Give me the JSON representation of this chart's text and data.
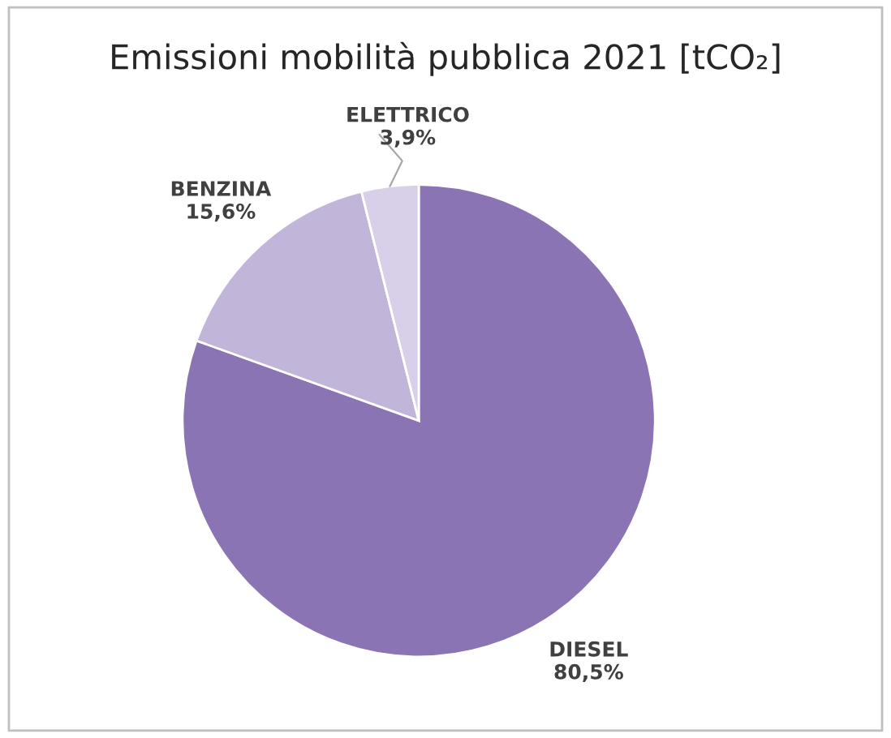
{
  "chart_data": {
    "type": "pie",
    "title": "Emissioni mobilità pubblica 2021 [tCO₂]",
    "categories": [
      "DIESEL",
      "BENZINA",
      "ELETTRICO"
    ],
    "values": [
      80.5,
      15.6,
      3.9
    ],
    "value_labels": [
      "80,5%",
      "15,6%",
      "3,9%"
    ],
    "colors": [
      "#8b74b3",
      "#c2b5da",
      "#d8d0e8"
    ]
  }
}
